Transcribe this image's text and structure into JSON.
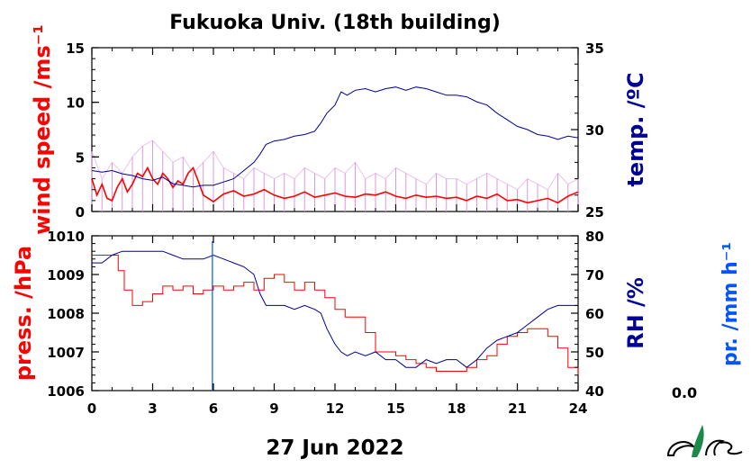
{
  "title": "Fukuoka Univ. (18th building)",
  "date_label": "27 Jun 2022",
  "precip_value": "0.0",
  "colors": {
    "wind_speed": "#ff0000",
    "wind_gust": "#dd99dd",
    "temperature": "#000099",
    "pressure": "#ff0000",
    "rh": "#000099",
    "precip": "#0055ff"
  },
  "logo_icon": "ncis-logo-icon",
  "chart_data": [
    {
      "type": "line",
      "panel": "top",
      "xlim": [
        0,
        24
      ],
      "x_ticks": [
        "0",
        "3",
        "6",
        "9",
        "12",
        "15",
        "18",
        "21",
        "24"
      ],
      "left_axis": {
        "label": "wind speed /ms⁻¹",
        "ylim": [
          0,
          15
        ],
        "ticks": [
          "0",
          "5",
          "10",
          "15"
        ]
      },
      "right_axis": {
        "label": "temp. /ºC",
        "ylim": [
          25,
          35
        ],
        "ticks": [
          "25",
          "30",
          "35"
        ]
      },
      "series": [
        {
          "axis": "left",
          "kind": "gust",
          "x": [
            0,
            0.5,
            1,
            1.5,
            2,
            2.5,
            3,
            3.5,
            4,
            4.5,
            5,
            5.5,
            6,
            6.5,
            7,
            7.5,
            8,
            8.5,
            9,
            9.5,
            10,
            10.5,
            11,
            11.5,
            12,
            12.5,
            13,
            13.5,
            14,
            14.5,
            15,
            15.5,
            16,
            16.5,
            17,
            17.5,
            18,
            18.5,
            19,
            19.5,
            20,
            20.5,
            21,
            21.5,
            22,
            22.5,
            23,
            23.5,
            24
          ],
          "y": [
            5.5,
            3,
            4.5,
            3.5,
            5,
            6,
            6.5,
            5.5,
            4.5,
            5,
            3.5,
            4.5,
            5.5,
            4,
            3.5,
            3,
            4,
            3.5,
            3,
            3.5,
            3,
            4,
            3.5,
            3,
            4,
            3.5,
            4.5,
            3,
            3.5,
            3,
            4,
            3.5,
            3,
            2.5,
            3.5,
            3,
            3,
            2.5,
            3,
            3.5,
            3,
            2.5,
            2,
            3,
            2.5,
            2,
            3.5,
            2.5,
            3
          ]
        },
        {
          "axis": "left",
          "kind": "speed",
          "x": [
            0,
            0.25,
            0.5,
            0.75,
            1,
            1.25,
            1.5,
            1.75,
            2,
            2.25,
            2.5,
            2.75,
            3,
            3.25,
            3.5,
            3.75,
            4,
            4.25,
            4.5,
            4.75,
            5,
            5.25,
            5.5,
            5.75,
            6,
            6.5,
            7,
            7.5,
            8,
            8.5,
            9,
            9.5,
            10,
            10.5,
            11,
            11.5,
            12,
            12.5,
            13,
            13.5,
            14,
            14.5,
            15,
            15.5,
            16,
            16.5,
            17,
            17.5,
            18,
            18.5,
            19,
            19.5,
            20,
            20.5,
            21,
            21.5,
            22,
            22.5,
            23,
            23.5,
            24
          ],
          "y": [
            3,
            1.5,
            2.5,
            1.2,
            1,
            2.2,
            3,
            1.8,
            2.5,
            3.5,
            3.2,
            4,
            3,
            2.5,
            3.5,
            3,
            2.2,
            2.8,
            2.5,
            3.5,
            4,
            2.8,
            1.5,
            1.2,
            0.9,
            1.6,
            1.9,
            1.4,
            1.6,
            2,
            1.5,
            1.2,
            1.4,
            1.8,
            1.3,
            1.5,
            1.7,
            1.4,
            1.3,
            1.6,
            1.5,
            1.8,
            1.4,
            1.2,
            1.5,
            1.3,
            1.4,
            1.2,
            1.3,
            1.0,
            1.4,
            1.2,
            1.6,
            1.0,
            1.1,
            0.8,
            1.0,
            1.2,
            0.8,
            1.4,
            1.8
          ]
        },
        {
          "axis": "right",
          "kind": "temperature",
          "x": [
            0,
            0.5,
            1,
            1.5,
            2,
            2.5,
            3,
            3.5,
            4,
            4.5,
            5,
            5.5,
            6,
            6.5,
            7,
            7.5,
            8,
            8.3,
            8.6,
            9,
            9.5,
            10,
            10.5,
            11,
            11.3,
            11.6,
            12,
            12.3,
            12.6,
            13,
            13.5,
            14,
            14.5,
            15,
            15.5,
            16,
            16.5,
            17,
            17.5,
            18,
            18.5,
            19,
            19.5,
            20,
            20.5,
            21,
            21.5,
            22,
            22.5,
            23,
            23.5,
            24
          ],
          "y": [
            27.5,
            27.4,
            27.5,
            27.3,
            27.2,
            27.0,
            26.9,
            27.1,
            26.7,
            26.6,
            26.5,
            26.6,
            26.6,
            26.8,
            27.0,
            27.5,
            28.0,
            28.5,
            29.1,
            29.3,
            29.4,
            29.6,
            29.7,
            29.9,
            30.4,
            31.0,
            31.5,
            32.3,
            32.1,
            32.4,
            32.5,
            32.3,
            32.5,
            32.6,
            32.4,
            32.6,
            32.5,
            32.3,
            32.1,
            32.1,
            32.0,
            31.7,
            31.5,
            31.0,
            30.6,
            30.2,
            30.0,
            29.7,
            29.6,
            29.4,
            29.6,
            29.5
          ]
        }
      ]
    },
    {
      "type": "line",
      "panel": "bottom",
      "xlim": [
        0,
        24
      ],
      "x_ticks": [
        "0",
        "3",
        "6",
        "9",
        "12",
        "15",
        "18",
        "21",
        "24"
      ],
      "left_axis": {
        "label": "press. /hPa",
        "ylim": [
          1006,
          1010
        ],
        "ticks": [
          "1006",
          "1007",
          "1008",
          "1009",
          "1010"
        ]
      },
      "right_axis": {
        "label": "RH /%",
        "ylim": [
          40,
          80
        ],
        "ticks": [
          "40",
          "50",
          "60",
          "70",
          "80"
        ]
      },
      "precip_axis": {
        "label": "pr. /mm h⁻¹"
      },
      "series": [
        {
          "axis": "left",
          "kind": "pressure",
          "x": [
            0,
            0.5,
            1,
            1.3,
            1.6,
            2,
            2.5,
            3,
            3.5,
            4,
            4.5,
            5,
            5.5,
            6,
            6.5,
            7,
            7.5,
            8,
            8.5,
            9,
            9.5,
            10,
            10.5,
            11,
            11.5,
            12,
            12.5,
            13,
            13.5,
            14,
            14.5,
            15,
            15.5,
            16,
            16.5,
            17,
            17.5,
            18,
            18.5,
            19,
            19.5,
            20,
            20.5,
            21,
            21.5,
            22,
            22.5,
            23,
            23.5,
            24
          ],
          "y": [
            1009.5,
            1009.5,
            1009.5,
            1009.1,
            1008.6,
            1008.2,
            1008.3,
            1008.5,
            1008.7,
            1008.6,
            1008.7,
            1008.5,
            1008.6,
            1008.7,
            1008.6,
            1008.7,
            1008.8,
            1008.6,
            1008.9,
            1009.0,
            1008.8,
            1008.6,
            1008.8,
            1008.6,
            1008.4,
            1008.1,
            1007.9,
            1007.9,
            1007.5,
            1007.0,
            1007.0,
            1006.9,
            1006.8,
            1006.7,
            1006.6,
            1006.5,
            1006.5,
            1006.5,
            1006.6,
            1006.8,
            1006.9,
            1007.2,
            1007.4,
            1007.5,
            1007.6,
            1007.6,
            1007.4,
            1007.1,
            1006.6,
            1006.4
          ]
        },
        {
          "axis": "right",
          "kind": "rh",
          "x": [
            0,
            0.5,
            1,
            1.5,
            2,
            2.5,
            3,
            3.5,
            4,
            4.5,
            5,
            5.5,
            6,
            6.5,
            7,
            7.5,
            8,
            8.3,
            8.6,
            9,
            9.5,
            10,
            10.5,
            11,
            11.3,
            11.6,
            12,
            12.3,
            12.6,
            13,
            13.5,
            14,
            14.5,
            15,
            15.5,
            16,
            16.5,
            17,
            17.5,
            18,
            18.5,
            19,
            19.5,
            20,
            20.5,
            21,
            21.5,
            22,
            22.5,
            23,
            23.5,
            24
          ],
          "y": [
            73,
            73,
            75,
            76,
            76,
            76,
            76,
            76,
            75,
            74,
            74,
            74,
            75,
            74,
            73,
            72,
            70,
            65,
            62,
            62,
            62,
            61,
            62,
            61,
            60,
            56,
            52,
            50,
            49,
            50,
            49,
            50,
            48,
            48,
            46,
            46,
            48,
            47,
            48,
            48,
            46,
            48,
            51,
            53,
            54,
            55,
            57,
            59,
            61,
            62,
            62,
            62
          ]
        }
      ],
      "markers": [
        {
          "axis": "x",
          "x": 5.95,
          "kind": "precip_bar"
        }
      ]
    }
  ]
}
